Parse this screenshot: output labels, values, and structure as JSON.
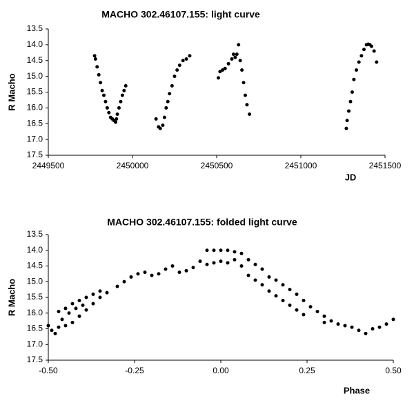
{
  "chart_data": [
    {
      "type": "scatter",
      "title": "MACHO 302.46107.155: light curve",
      "x_label": "JD",
      "y_label": "R Macho",
      "color": "#000000",
      "x": [
        2449775,
        2449780,
        2449790,
        2449800,
        2449810,
        2449820,
        2449830,
        2449840,
        2449850,
        2449860,
        2449870,
        2449880,
        2449890,
        2449900,
        2449905,
        2449910,
        2449920,
        2449930,
        2449940,
        2449950,
        2449960,
        2450140,
        2450155,
        2450165,
        2450180,
        2450190,
        2450200,
        2450210,
        2450220,
        2450235,
        2450250,
        2450265,
        2450280,
        2450300,
        2450320,
        2450340,
        2450510,
        2450520,
        2450535,
        2450550,
        2450570,
        2450590,
        2450600,
        2450610,
        2450620,
        2450630,
        2450640,
        2450650,
        2450660,
        2450670,
        2450680,
        2450695,
        2451270,
        2451275,
        2451285,
        2451295,
        2451305,
        2451315,
        2451330,
        2451345,
        2451360,
        2451375,
        2451390,
        2451400,
        2451410,
        2451420,
        2451435,
        2451450
      ],
      "values": [
        14.35,
        14.45,
        14.7,
        14.95,
        15.2,
        15.45,
        15.6,
        15.8,
        16.0,
        16.15,
        16.3,
        16.35,
        16.4,
        16.45,
        16.35,
        16.2,
        16.0,
        15.8,
        15.6,
        15.45,
        15.3,
        16.35,
        16.6,
        16.65,
        16.55,
        16.3,
        16.0,
        15.8,
        15.55,
        15.3,
        15.0,
        14.8,
        14.65,
        14.5,
        14.45,
        14.35,
        15.05,
        14.85,
        14.8,
        14.75,
        14.6,
        14.45,
        14.3,
        14.4,
        14.3,
        14.0,
        14.5,
        14.8,
        15.2,
        15.6,
        15.9,
        16.2,
        16.65,
        16.4,
        16.1,
        15.8,
        15.5,
        15.1,
        14.8,
        14.55,
        14.35,
        14.15,
        14.0,
        13.98,
        14.0,
        14.05,
        14.2,
        14.55
      ],
      "xlim": [
        2449500,
        2451500
      ],
      "xticks": [
        2449500,
        2450000,
        2450500,
        2451000,
        2451500
      ],
      "ylim": [
        17.5,
        13.5
      ],
      "yticks": [
        13.5,
        {
          "value": 14,
          "label": "14.0"
        },
        14.5,
        {
          "value": 15,
          "label": "15.0"
        },
        15.5,
        {
          "value": 16,
          "label": "16.0"
        },
        16.5,
        {
          "value": 17,
          "label": "17.0"
        },
        17.5
      ]
    },
    {
      "type": "scatter",
      "title": "MACHO 302.46107.155: folded light curve",
      "x_label": "Phase",
      "y_label": "R Macho",
      "color": "#000000",
      "x": [
        -0.5,
        -0.49,
        -0.48,
        -0.47,
        -0.45,
        -0.43,
        -0.41,
        -0.39,
        -0.37,
        -0.35,
        -0.33,
        -0.47,
        -0.45,
        -0.43,
        -0.41,
        -0.39,
        -0.37,
        -0.35,
        -0.46,
        -0.44,
        -0.42,
        -0.4,
        -0.3,
        -0.28,
        -0.26,
        -0.24,
        -0.22,
        -0.2,
        -0.18,
        -0.16,
        -0.14,
        -0.12,
        -0.1,
        -0.08,
        -0.06,
        -0.04,
        -0.02,
        0,
        0.02,
        0.04,
        0.06,
        0.08,
        0.1,
        0.12,
        0.14,
        0.16,
        0.18,
        0.2,
        0.22,
        0.24,
        0.26,
        0.28,
        0.3,
        0.32,
        0.34,
        0.36,
        0.38,
        0.4,
        0.42,
        0.44,
        0.46,
        0.48,
        0.5,
        -0.04,
        -0.02,
        0,
        0.02,
        0.04,
        0.06,
        0.08,
        0.1,
        0.12,
        0.14,
        0.16,
        0.18,
        0.2,
        0.22,
        0.24,
        0.3
      ],
      "values": [
        16.4,
        16.55,
        16.65,
        16.45,
        16.4,
        16.3,
        16.1,
        15.9,
        15.7,
        15.5,
        15.35,
        15.95,
        15.85,
        15.7,
        15.6,
        15.5,
        15.4,
        15.3,
        16.2,
        16.0,
        15.85,
        15.75,
        15.15,
        15.0,
        14.85,
        14.75,
        14.7,
        14.8,
        14.75,
        14.6,
        14.5,
        14.7,
        14.65,
        14.55,
        14.35,
        14.0,
        14.0,
        14.0,
        14.0,
        14.05,
        14.1,
        14.3,
        14.45,
        14.6,
        14.85,
        14.95,
        15.1,
        15.25,
        15.4,
        15.6,
        15.8,
        15.95,
        16.1,
        16.25,
        16.35,
        16.4,
        16.45,
        16.55,
        16.65,
        16.5,
        16.45,
        16.35,
        16.2,
        14.45,
        14.4,
        14.35,
        14.4,
        14.3,
        14.5,
        14.8,
        14.95,
        15.1,
        15.3,
        15.45,
        15.6,
        15.75,
        15.9,
        16.05,
        16.3
      ],
      "xlim": [
        -0.5,
        0.5
      ],
      "xticks": [
        {
          "value": -0.5,
          "label": "-0.50"
        },
        {
          "value": -0.25,
          "label": "-0.25"
        },
        {
          "value": 0,
          "label": "0.00"
        },
        {
          "value": 0.25,
          "label": "0.25"
        },
        {
          "value": 0.5,
          "label": "0.50"
        }
      ],
      "ylim": [
        17.5,
        13.5
      ],
      "yticks": [
        13.5,
        {
          "value": 14,
          "label": "14.0"
        },
        14.5,
        {
          "value": 15,
          "label": "15.0"
        },
        15.5,
        {
          "value": 16,
          "label": "16.0"
        },
        16.5,
        {
          "value": 17,
          "label": "17.0"
        },
        17.5
      ]
    }
  ]
}
